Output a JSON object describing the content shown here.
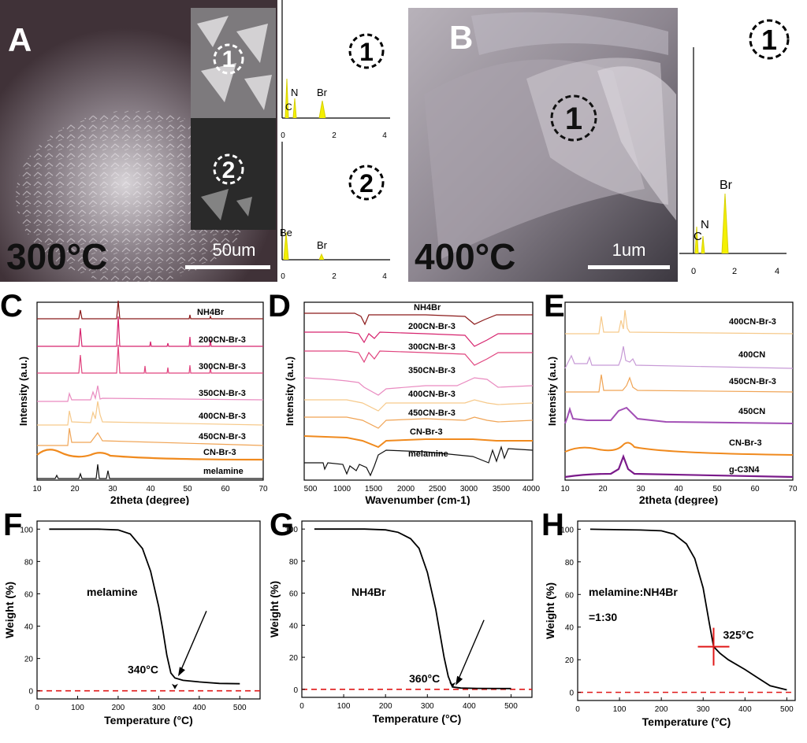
{
  "panels": {
    "A": {
      "letter": "A",
      "temperature": "300°C",
      "scale_bar": "50um",
      "spot1": "1",
      "spot2": "2",
      "edx1": {
        "label": "1",
        "peaks": [
          "C",
          "N",
          "Br"
        ],
        "ticks": [
          "0",
          "2",
          "4"
        ]
      },
      "edx2": {
        "label": "2",
        "peaks": [
          "Be",
          "Br"
        ],
        "ticks": [
          "0",
          "2",
          "4"
        ]
      }
    },
    "B": {
      "letter": "B",
      "temperature": "400°C",
      "scale_bar": "1um",
      "spot1": "1",
      "edx1": {
        "label": "1",
        "peaks": [
          "C",
          "N",
          "Br"
        ],
        "ticks": [
          "0",
          "2",
          "4"
        ]
      }
    }
  },
  "chart_data": [
    {
      "id": "C",
      "type": "line",
      "xlabel": "2theta (degree)",
      "ylabel": "Intensity (a.u.)",
      "xlim": [
        10,
        70
      ],
      "xticks": [
        10,
        20,
        30,
        40,
        50,
        60,
        70
      ],
      "series": [
        {
          "name": "NH4Br",
          "color": "#8b1a1a"
        },
        {
          "name": "200CN-Br-3",
          "color": "#d6246e"
        },
        {
          "name": "300CN-Br-3",
          "color": "#e0457f"
        },
        {
          "name": "350CN-Br-3",
          "color": "#e98bc0"
        },
        {
          "name": "400CN-Br-3",
          "color": "#f6c98a"
        },
        {
          "name": "450CN-Br-3",
          "color": "#f0a455"
        },
        {
          "name": "CN-Br-3",
          "color": "#f08a1e"
        },
        {
          "name": "melamine",
          "color": "#111111"
        }
      ]
    },
    {
      "id": "D",
      "type": "line",
      "xlabel": "Wavenumber (cm-1)",
      "ylabel": "Intensity (a.u.)",
      "xlim": [
        400,
        4000
      ],
      "xticks": [
        500,
        1000,
        1500,
        2000,
        2500,
        3000,
        3500,
        4000
      ],
      "series": [
        {
          "name": "NH4Br",
          "color": "#8b1a1a"
        },
        {
          "name": "200CN-Br-3",
          "color": "#d6246e"
        },
        {
          "name": "300CN-Br-3",
          "color": "#e0457f"
        },
        {
          "name": "350CN-Br-3",
          "color": "#e98bc0"
        },
        {
          "name": "400CN-Br-3",
          "color": "#f6c98a"
        },
        {
          "name": "450CN-Br-3",
          "color": "#f0a455"
        },
        {
          "name": "CN-Br-3",
          "color": "#f08a1e"
        },
        {
          "name": "melamine",
          "color": "#111111"
        }
      ]
    },
    {
      "id": "E",
      "type": "line",
      "xlabel": "2theta (degree)",
      "ylabel": "Intensity (a.u.)",
      "xlim": [
        10,
        70
      ],
      "xticks": [
        10,
        20,
        30,
        40,
        50,
        60,
        70
      ],
      "series": [
        {
          "name": "400CN-Br-3",
          "color": "#f6c98a"
        },
        {
          "name": "400CN",
          "color": "#c79ad6"
        },
        {
          "name": "450CN-Br-3",
          "color": "#f0a455"
        },
        {
          "name": "450CN",
          "color": "#a24fb5"
        },
        {
          "name": "CN-Br-3",
          "color": "#f08a1e"
        },
        {
          "name": "g-C3N4",
          "color": "#7a1a8a"
        }
      ]
    },
    {
      "id": "F",
      "type": "line",
      "xlabel": "Temperature (°C)",
      "ylabel": "Weight (%)",
      "xlim": [
        0,
        550
      ],
      "ylim": [
        -5,
        105
      ],
      "xticks": [
        0,
        100,
        200,
        300,
        400,
        500
      ],
      "yticks": [
        0,
        20,
        40,
        60,
        80,
        100
      ],
      "annotation": "melamine",
      "marker": "340°C",
      "series": [
        {
          "name": "melamine",
          "x": [
            30,
            150,
            200,
            230,
            260,
            280,
            300,
            310,
            320,
            330,
            340,
            360,
            400,
            450,
            500
          ],
          "y": [
            100,
            100,
            99.5,
            97,
            88,
            74,
            52,
            38,
            22,
            11,
            8,
            6.5,
            5.5,
            4.6,
            4.4
          ]
        }
      ]
    },
    {
      "id": "G",
      "type": "line",
      "xlabel": "Temperature (°C)",
      "ylabel": "Weight (%)",
      "xlim": [
        0,
        550
      ],
      "ylim": [
        -5,
        105
      ],
      "xticks": [
        0,
        100,
        200,
        300,
        400,
        500
      ],
      "yticks": [
        0,
        20,
        40,
        60,
        80,
        100
      ],
      "annotation": "NH4Br",
      "marker": "360°C",
      "series": [
        {
          "name": "NH4Br",
          "x": [
            30,
            150,
            200,
            230,
            260,
            280,
            300,
            320,
            340,
            350,
            360,
            380,
            420,
            500
          ],
          "y": [
            100,
            100,
            99.5,
            98,
            94,
            88,
            73,
            50,
            20,
            8,
            1.5,
            0.8,
            0.6,
            0.5
          ]
        }
      ]
    },
    {
      "id": "H",
      "type": "line",
      "xlabel": "Temperature (°C)",
      "ylabel": "Weight (%)",
      "xlim": [
        0,
        520
      ],
      "ylim": [
        -5,
        105
      ],
      "xticks": [
        0,
        100,
        200,
        300,
        400,
        500
      ],
      "yticks": [
        0,
        20,
        40,
        60,
        80,
        100
      ],
      "annotation": "melamine:NH4Br",
      "annotation2": "=1:30",
      "marker": "325°C",
      "series": [
        {
          "name": "melamine:NH4Br",
          "x": [
            30,
            150,
            200,
            230,
            260,
            280,
            300,
            315,
            325,
            340,
            360,
            400,
            430,
            460,
            500
          ],
          "y": [
            100,
            99.5,
            99,
            97,
            91,
            82,
            64,
            42,
            28,
            24,
            20,
            14,
            9,
            4,
            1.5
          ]
        }
      ]
    }
  ]
}
